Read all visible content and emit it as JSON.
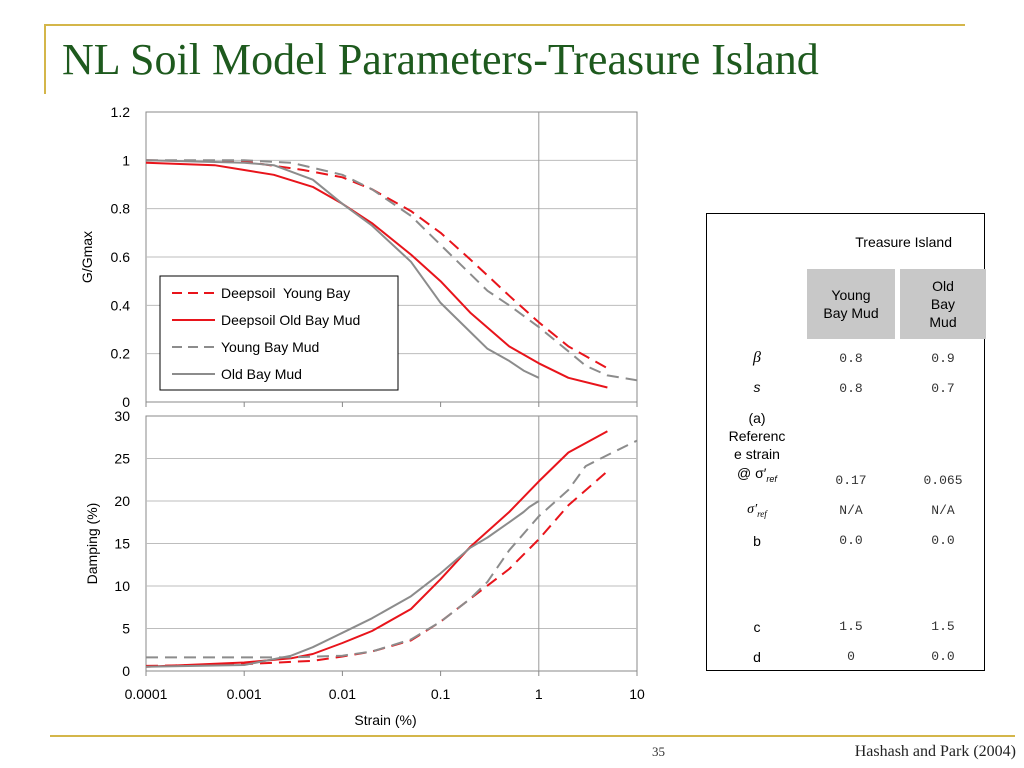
{
  "title": "NL Soil Model Parameters-Treasure Island",
  "footer": {
    "page_number": "35",
    "citation": "Hashash and Park (2004)"
  },
  "chart_data": [
    {
      "type": "line",
      "title": "",
      "xlabel": "",
      "ylabel": "G/Gmax",
      "x_scale": "log",
      "xlim": [
        0.0001,
        10
      ],
      "ylim": [
        0,
        1.2
      ],
      "yticks": [
        "0",
        "0.2",
        "0.4",
        "0.6",
        "0.8",
        "1",
        "1.2"
      ],
      "legend_position": "bottom-left",
      "grid": true,
      "series": [
        {
          "name": "Deepsoil  Young Bay",
          "color": "#e8141b",
          "dash": "dashed",
          "x": [
            0.0001,
            0.001,
            0.004,
            0.01,
            0.02,
            0.05,
            0.1,
            0.2,
            0.5,
            1,
            2,
            5
          ],
          "y": [
            1.0,
            0.995,
            0.96,
            0.93,
            0.88,
            0.79,
            0.7,
            0.59,
            0.44,
            0.33,
            0.23,
            0.14
          ]
        },
        {
          "name": "Deepsoil Old Bay Mud",
          "color": "#e8141b",
          "dash": "solid",
          "x": [
            0.0001,
            0.0005,
            0.001,
            0.002,
            0.005,
            0.01,
            0.02,
            0.05,
            0.1,
            0.2,
            0.5,
            1,
            2,
            5
          ],
          "y": [
            0.99,
            0.98,
            0.96,
            0.94,
            0.89,
            0.82,
            0.74,
            0.61,
            0.5,
            0.37,
            0.23,
            0.16,
            0.1,
            0.06
          ]
        },
        {
          "name": "Young Bay Mud",
          "color": "#8c8c8c",
          "dash": "dashed",
          "x": [
            0.0001,
            0.001,
            0.003,
            0.01,
            0.02,
            0.05,
            0.1,
            0.2,
            0.3,
            0.5,
            1,
            2,
            3,
            5,
            10
          ],
          "y": [
            1.0,
            1.0,
            0.99,
            0.94,
            0.88,
            0.77,
            0.65,
            0.53,
            0.46,
            0.4,
            0.31,
            0.21,
            0.15,
            0.11,
            0.09
          ]
        },
        {
          "name": "Old Bay Mud",
          "color": "#8c8c8c",
          "dash": "solid",
          "x": [
            0.0001,
            0.001,
            0.002,
            0.005,
            0.01,
            0.02,
            0.05,
            0.1,
            0.2,
            0.3,
            0.5,
            0.7,
            1
          ],
          "y": [
            1.0,
            0.99,
            0.98,
            0.92,
            0.82,
            0.73,
            0.58,
            0.41,
            0.29,
            0.22,
            0.17,
            0.13,
            0.1
          ]
        }
      ]
    },
    {
      "type": "line",
      "title": "",
      "xlabel": "Strain (%)",
      "ylabel": "Damping (%)",
      "x_scale": "log",
      "xlim": [
        0.0001,
        10
      ],
      "ylim": [
        0,
        30
      ],
      "xticks": [
        "0.0001",
        "0.001",
        "0.01",
        "0.1",
        "1",
        "10"
      ],
      "yticks": [
        "0",
        "5",
        "10",
        "15",
        "20",
        "25",
        "30"
      ],
      "grid": true,
      "series": [
        {
          "name": "Deepsoil  Young Bay",
          "color": "#e8141b",
          "dash": "dashed",
          "x": [
            0.0001,
            0.001,
            0.005,
            0.01,
            0.02,
            0.05,
            0.1,
            0.2,
            0.5,
            1,
            2,
            5
          ],
          "y": [
            0.6,
            0.8,
            1.2,
            1.7,
            2.3,
            3.6,
            5.8,
            8.5,
            12,
            15.5,
            19.5,
            23.5
          ]
        },
        {
          "name": "Deepsoil Old Bay Mud",
          "color": "#e8141b",
          "dash": "solid",
          "x": [
            0.0001,
            0.001,
            0.003,
            0.005,
            0.01,
            0.02,
            0.05,
            0.1,
            0.2,
            0.5,
            1,
            2,
            5
          ],
          "y": [
            0.5,
            1.0,
            1.5,
            2.0,
            3.3,
            4.7,
            7.3,
            10.8,
            14.6,
            18.7,
            22.3,
            25.7,
            28.2
          ]
        },
        {
          "name": "Young Bay Mud",
          "color": "#8c8c8c",
          "dash": "dashed",
          "x": [
            0.0001,
            0.001,
            0.003,
            0.01,
            0.02,
            0.05,
            0.1,
            0.2,
            0.3,
            0.5,
            1,
            2,
            3,
            5,
            10
          ],
          "y": [
            1.6,
            1.6,
            1.6,
            1.8,
            2.3,
            3.7,
            5.8,
            8.5,
            10.5,
            14.2,
            18.2,
            21.3,
            24.1,
            25.4,
            27.1
          ]
        },
        {
          "name": "Old Bay Mud",
          "color": "#8c8c8c",
          "dash": "solid",
          "x": [
            0.0001,
            0.001,
            0.003,
            0.005,
            0.01,
            0.02,
            0.05,
            0.1,
            0.2,
            0.3,
            0.5,
            0.7,
            0.8,
            1
          ],
          "y": [
            0.5,
            0.7,
            1.8,
            2.8,
            4.5,
            6.2,
            8.8,
            11.5,
            14.5,
            15.7,
            17.5,
            18.7,
            19.3,
            20
          ]
        }
      ]
    }
  ],
  "table": {
    "title": "Treasure Island",
    "columns": [
      "Young\nBay Mud",
      "Old\nBay\nMud"
    ],
    "rows": [
      {
        "label": "β",
        "values": [
          "0.8",
          "0.9"
        ]
      },
      {
        "label": "s",
        "values": [
          "0.8",
          "0.7"
        ]
      },
      {
        "label": "(a)\nReferenc\ne  strain\n@ σ′ref",
        "values": [
          "0.17",
          "0.065"
        ]
      },
      {
        "label": "σ′ref",
        "values": [
          "N/A",
          "N/A"
        ]
      },
      {
        "label": "b",
        "values": [
          "0.0",
          "0.0"
        ]
      },
      {
        "label": "c",
        "values": [
          "1.5",
          "1.5"
        ]
      },
      {
        "label": "d",
        "values": [
          "0",
          "0.0"
        ]
      }
    ]
  }
}
